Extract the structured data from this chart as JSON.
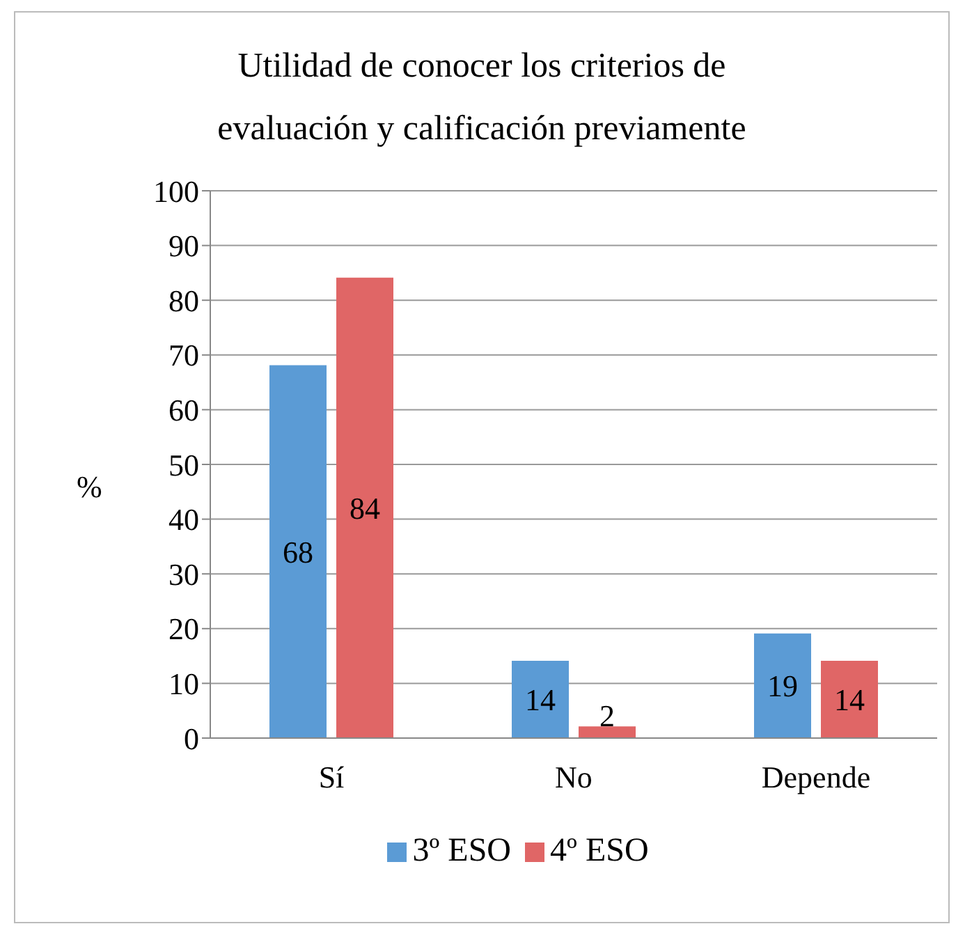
{
  "chart_data": {
    "type": "bar",
    "title": "Utilidad de conocer los criterios de evaluación y calificación previamente",
    "ylabel": "%",
    "categories": [
      "Sí",
      "No",
      "Depende"
    ],
    "series": [
      {
        "name": "3º ESO",
        "color": "#5b9bd5",
        "values": [
          68,
          14,
          19
        ]
      },
      {
        "name": "4º ESO",
        "color": "#e06666",
        "values": [
          84,
          2,
          14
        ]
      }
    ],
    "ylim": [
      0,
      100
    ],
    "yticks": [
      0,
      10,
      20,
      30,
      40,
      50,
      60,
      70,
      80,
      90,
      100
    ],
    "grid": "y",
    "legend": "bottom",
    "data_labels": true
  }
}
